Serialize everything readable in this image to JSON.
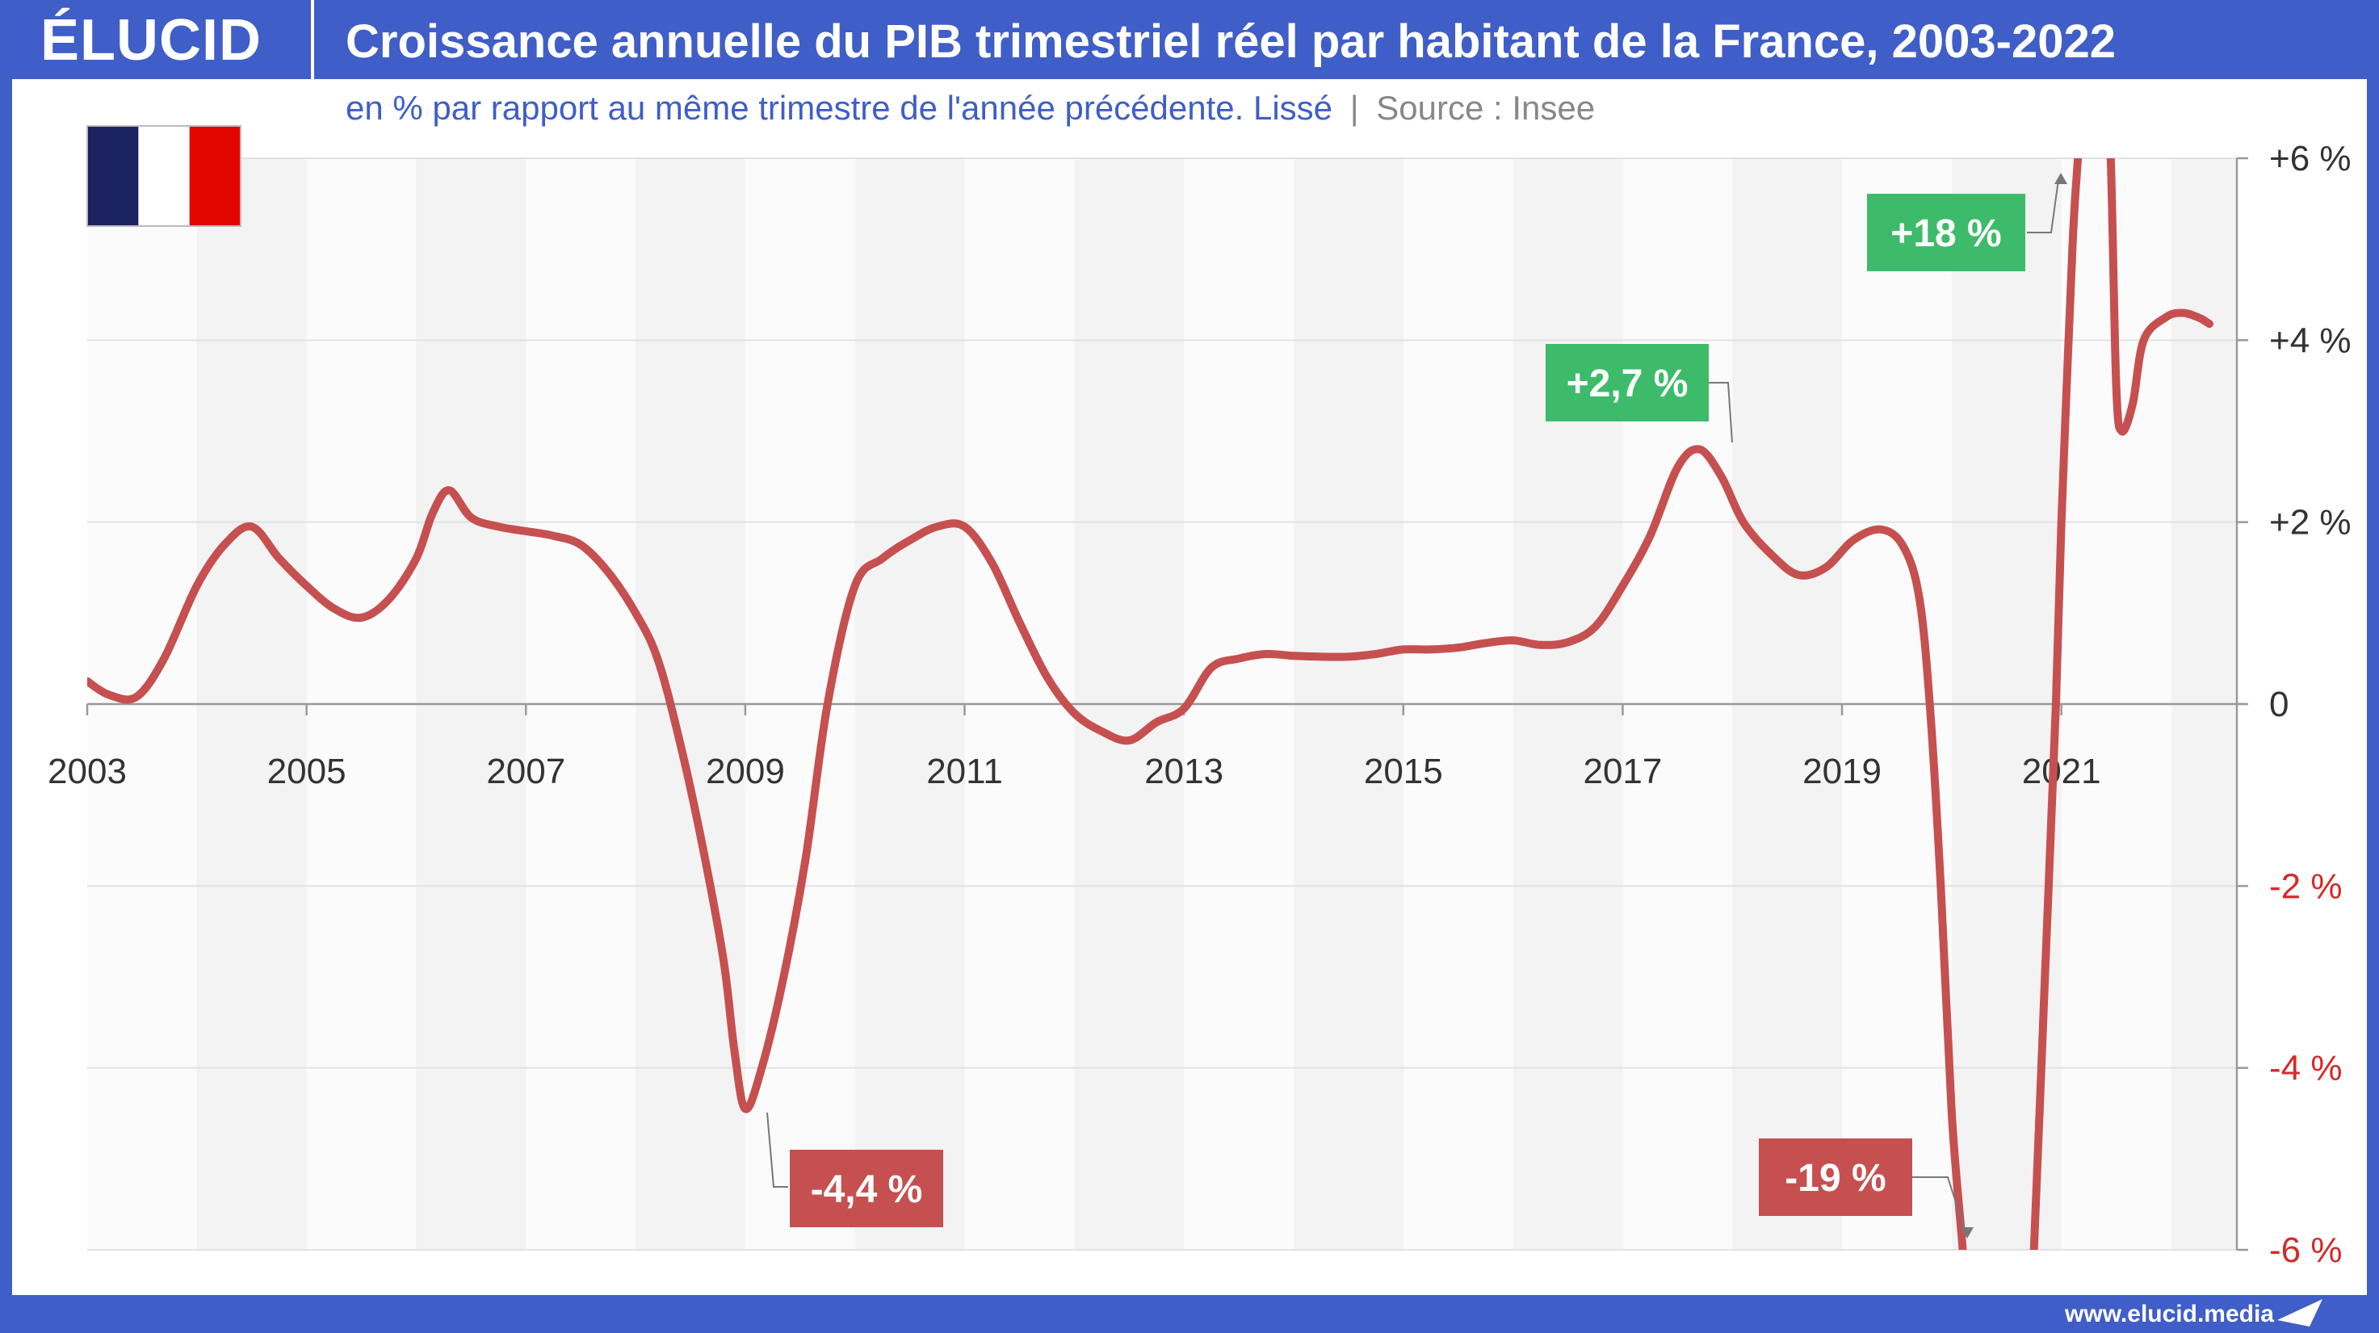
{
  "brand": {
    "logo": "ÉLUCID",
    "website": "www.elucid.media"
  },
  "header": {
    "title": "Croissance annuelle du PIB trimestriel réel par habitant de la France, 2003-2022",
    "subtitle": "en % par rapport au même trimestre de l'année précédente. Lissé",
    "separator": "|",
    "source": "Source : Insee"
  },
  "flag": {
    "colors": [
      "#1a2360",
      "#ffffff",
      "#e10600"
    ],
    "icon": "france-flag-icon"
  },
  "colors": {
    "line": "#c65050",
    "positive_label": "#3dbb6a",
    "negative_label": "#c65050",
    "negative_tick": "#d42a2a",
    "positive_tick": "#333333",
    "band": "#f3f3f3",
    "background_header": "#3f5ec8"
  },
  "chart_data": {
    "type": "line",
    "title": "Croissance annuelle du PIB trimestriel réel par habitant de la France, 2003-2022",
    "ylabel": "",
    "xlabel": "",
    "ylim": [
      -6,
      6
    ],
    "xlim": [
      2003,
      2022.6
    ],
    "x_ticks": [
      "2003",
      "2005",
      "2007",
      "2009",
      "2011",
      "2013",
      "2015",
      "2017",
      "2019",
      "2021"
    ],
    "y_ticks": [
      {
        "value": 6,
        "label": "+6 %"
      },
      {
        "value": 4,
        "label": "+4 %"
      },
      {
        "value": 2,
        "label": "+2 %"
      },
      {
        "value": 0,
        "label": "0"
      },
      {
        "value": -2,
        "label": "-2 %"
      },
      {
        "value": -4,
        "label": "-4 %"
      },
      {
        "value": -6,
        "label": "-6 %"
      }
    ],
    "grid": true,
    "series": [
      {
        "values": [
          [
            2003.0,
            0.25
          ],
          [
            2003.2,
            0.1
          ],
          [
            2003.45,
            0.08
          ],
          [
            2003.7,
            0.5
          ],
          [
            2004.0,
            1.3
          ],
          [
            2004.25,
            1.75
          ],
          [
            2004.5,
            1.95
          ],
          [
            2004.75,
            1.6
          ],
          [
            2005.0,
            1.3
          ],
          [
            2005.25,
            1.05
          ],
          [
            2005.5,
            0.95
          ],
          [
            2005.75,
            1.15
          ],
          [
            2006.0,
            1.6
          ],
          [
            2006.15,
            2.1
          ],
          [
            2006.3,
            2.35
          ],
          [
            2006.5,
            2.05
          ],
          [
            2006.75,
            1.95
          ],
          [
            2007.0,
            1.9
          ],
          [
            2007.25,
            1.85
          ],
          [
            2007.5,
            1.75
          ],
          [
            2007.75,
            1.45
          ],
          [
            2008.0,
            1.0
          ],
          [
            2008.2,
            0.5
          ],
          [
            2008.4,
            -0.4
          ],
          [
            2008.6,
            -1.5
          ],
          [
            2008.8,
            -2.8
          ],
          [
            2008.9,
            -3.8
          ],
          [
            2009.0,
            -4.45
          ],
          [
            2009.15,
            -4.0
          ],
          [
            2009.35,
            -3.0
          ],
          [
            2009.55,
            -1.7
          ],
          [
            2009.75,
            0.0
          ],
          [
            2010.0,
            1.3
          ],
          [
            2010.25,
            1.6
          ],
          [
            2010.5,
            1.8
          ],
          [
            2010.75,
            1.95
          ],
          [
            2011.0,
            1.95
          ],
          [
            2011.25,
            1.55
          ],
          [
            2011.5,
            0.9
          ],
          [
            2011.75,
            0.3
          ],
          [
            2012.0,
            -0.1
          ],
          [
            2012.25,
            -0.3
          ],
          [
            2012.5,
            -0.4
          ],
          [
            2012.75,
            -0.2
          ],
          [
            2013.0,
            -0.05
          ],
          [
            2013.25,
            0.4
          ],
          [
            2013.5,
            0.5
          ],
          [
            2013.75,
            0.55
          ],
          [
            2014.0,
            0.53
          ],
          [
            2014.25,
            0.52
          ],
          [
            2014.5,
            0.52
          ],
          [
            2014.75,
            0.55
          ],
          [
            2015.0,
            0.6
          ],
          [
            2015.25,
            0.6
          ],
          [
            2015.5,
            0.62
          ],
          [
            2015.75,
            0.67
          ],
          [
            2016.0,
            0.7
          ],
          [
            2016.25,
            0.65
          ],
          [
            2016.5,
            0.68
          ],
          [
            2016.75,
            0.85
          ],
          [
            2017.0,
            1.3
          ],
          [
            2017.25,
            1.85
          ],
          [
            2017.5,
            2.6
          ],
          [
            2017.7,
            2.8
          ],
          [
            2017.9,
            2.5
          ],
          [
            2018.1,
            2.0
          ],
          [
            2018.35,
            1.65
          ],
          [
            2018.6,
            1.42
          ],
          [
            2018.85,
            1.5
          ],
          [
            2019.1,
            1.8
          ],
          [
            2019.35,
            1.92
          ],
          [
            2019.55,
            1.75
          ],
          [
            2019.7,
            1.2
          ],
          [
            2019.8,
            0.0
          ],
          [
            2019.9,
            -2.0
          ],
          [
            2020.0,
            -4.5
          ],
          [
            2020.1,
            -6.0
          ],
          [
            2020.15,
            -7.0
          ],
          [
            2020.7,
            -7.0
          ],
          [
            2020.75,
            -6.0
          ],
          [
            2020.85,
            -3.0
          ],
          [
            2020.95,
            0.0
          ],
          [
            2021.0,
            2.0
          ],
          [
            2021.1,
            5.0
          ],
          [
            2021.15,
            6.0
          ],
          [
            2021.2,
            7.0
          ],
          [
            2021.4,
            7.0
          ],
          [
            2021.45,
            6.0
          ],
          [
            2021.5,
            3.5
          ],
          [
            2021.55,
            3.0
          ],
          [
            2021.65,
            3.3
          ],
          [
            2021.75,
            4.0
          ],
          [
            2021.95,
            4.25
          ],
          [
            2022.1,
            4.3
          ],
          [
            2022.25,
            4.25
          ],
          [
            2022.35,
            4.18
          ]
        ]
      }
    ],
    "annotations": [
      {
        "label": "+18 %",
        "kind": "positive"
      },
      {
        "label": "+2,7 %",
        "kind": "positive"
      },
      {
        "label": "-4,4 %",
        "kind": "negative"
      },
      {
        "label": "-19 %",
        "kind": "negative"
      }
    ]
  }
}
